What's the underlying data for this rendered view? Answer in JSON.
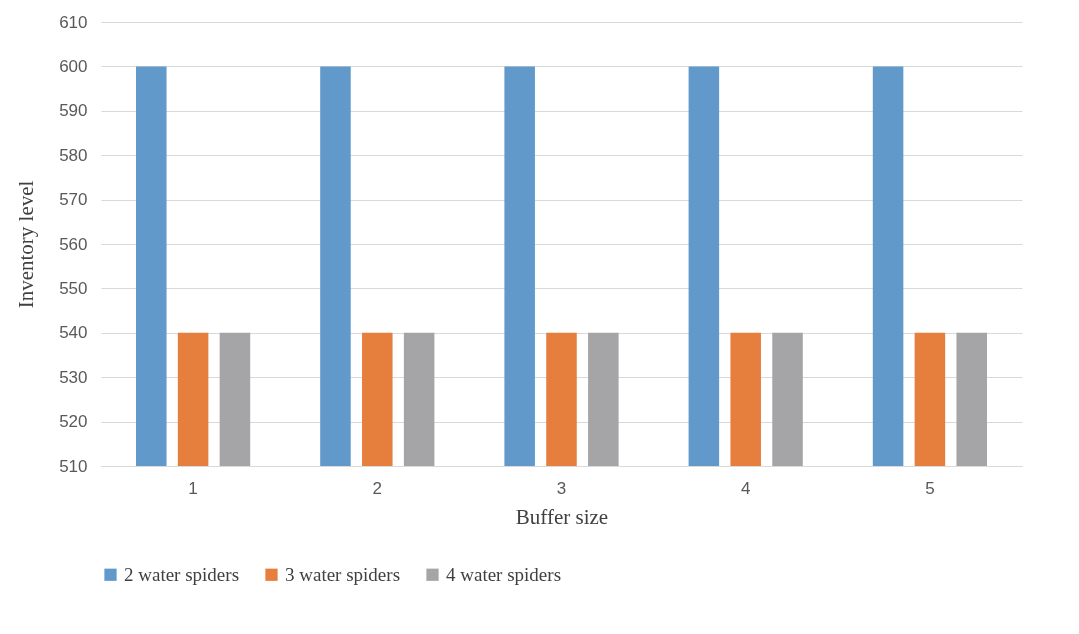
{
  "chart_data": {
    "type": "bar",
    "xlabel": "Buffer size",
    "ylabel": "Inventory level",
    "categories": [
      "1",
      "2",
      "3",
      "4",
      "5"
    ],
    "series": [
      {
        "name": "2 water spiders",
        "color": "#6199cb",
        "values": [
          600,
          600,
          600,
          600,
          600
        ]
      },
      {
        "name": "3 water spiders",
        "color": "#e67e3e",
        "values": [
          540,
          540,
          540,
          540,
          540
        ]
      },
      {
        "name": "4 water spiders",
        "color": "#a5a5a7",
        "values": [
          540,
          540,
          540,
          540,
          540
        ]
      }
    ],
    "ylim": [
      510,
      610
    ],
    "yticks": [
      510,
      520,
      530,
      540,
      550,
      560,
      570,
      580,
      590,
      600,
      610
    ],
    "grid": "y",
    "legend": "bottom"
  }
}
